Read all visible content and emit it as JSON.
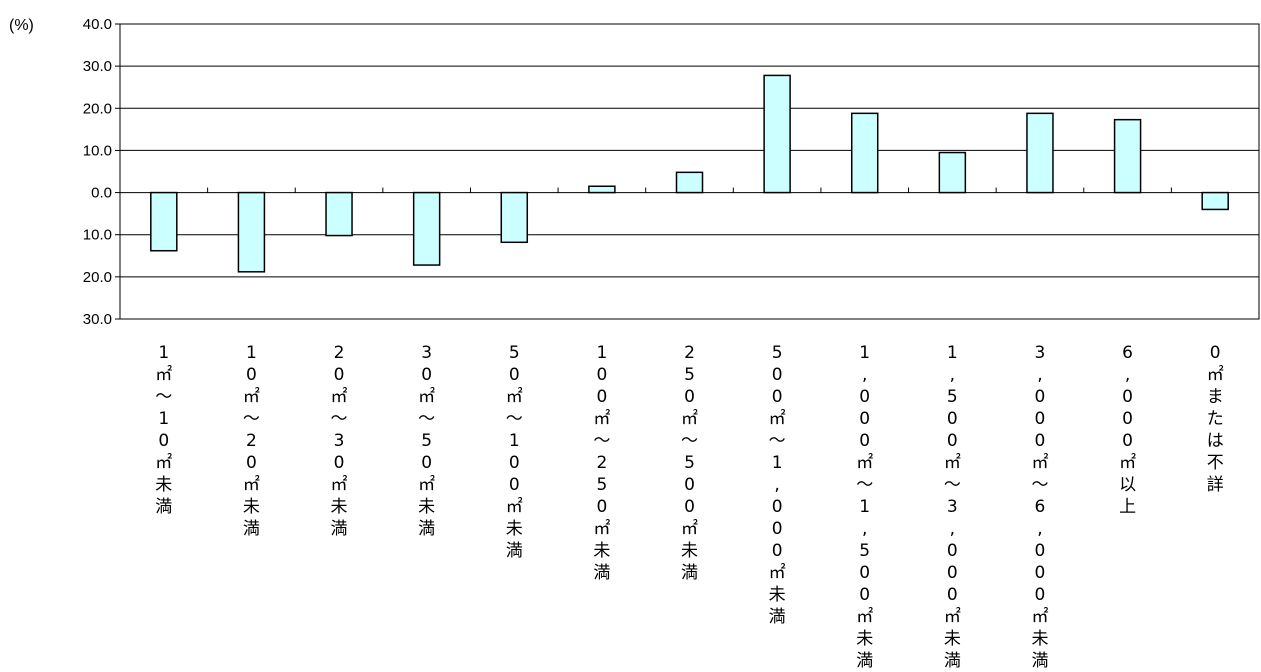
{
  "chart_data": {
    "type": "bar",
    "unit_label": "(%)",
    "ylim": [
      -30,
      40
    ],
    "yticks": [
      40,
      30,
      20,
      10,
      0,
      -10,
      -20,
      -30
    ],
    "ytick_labels": [
      "40.0",
      "30.0",
      "20.0",
      "10.0",
      "0.0",
      "10.0",
      "20.0",
      "30.0"
    ],
    "grid": true,
    "bar_color": "#ccffff",
    "bar_edge_color": "#000000",
    "categories": [
      "1㎡〜10㎡未満",
      "10㎡〜20㎡未満",
      "20㎡〜30㎡未満",
      "30㎡〜50㎡未満",
      "50㎡〜100㎡未満",
      "100㎡〜250㎡未満",
      "250㎡〜500㎡未満",
      "500㎡〜1,000㎡未満",
      "1,000㎡〜1,500㎡未満",
      "1,500㎡〜3,000㎡未満",
      "3,000㎡〜6,000㎡未満",
      "6,000㎡以上",
      "0㎡または不詳"
    ],
    "values": [
      -13.8,
      -18.8,
      -10.2,
      -17.2,
      -11.8,
      1.5,
      4.8,
      27.8,
      18.8,
      9.5,
      18.8,
      17.3,
      -4.0
    ]
  }
}
